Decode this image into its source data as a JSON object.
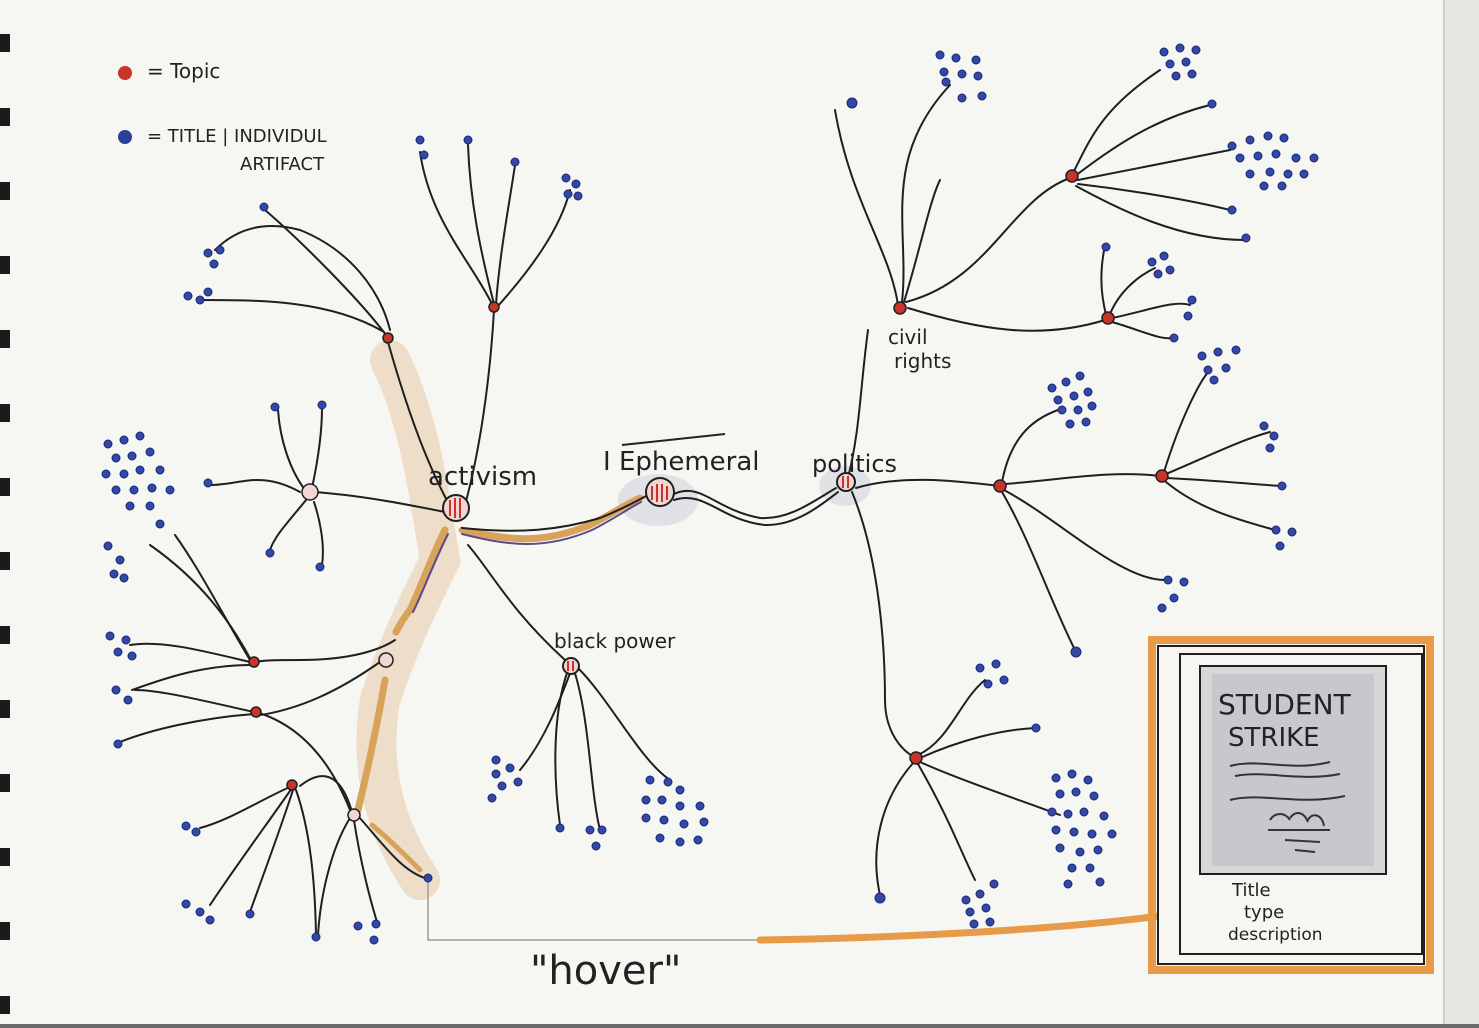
{
  "legend": {
    "topic_label": "= Topic",
    "title_label": "= TITLE | INDIVIDUL",
    "artifact_label": "ARTIFACT",
    "topic_color": "#c8332b",
    "title_color": "#2a3f9c"
  },
  "topics": {
    "ephemeral": "Ephemeral",
    "activism": "activism",
    "politics": "politics",
    "civil_rights_line1": "civil",
    "civil_rights_line2": "rights",
    "black_power": "black power"
  },
  "hover_note": "\"hover\"",
  "preview_card": {
    "title_line1": "STUDENT",
    "title_line2": "STRIKE",
    "meta_title": "Title",
    "meta_type": "type",
    "meta_description": "description",
    "frame_color": "#e79a47"
  },
  "colors": {
    "paper": "#f6f6f3",
    "ink": "#1f1f1f",
    "highlight_path": "#d9a25a"
  }
}
